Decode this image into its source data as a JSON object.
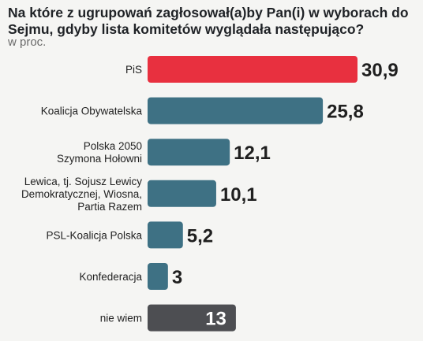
{
  "title": "Na które z ugrupowań zagłosował(a)by Pan(i) w wyborach do Sejmu, gdyby lista komitetów wyglądała następująco?",
  "subtitle": "w proc.",
  "colors": {
    "highlight": "#e8303f",
    "default": "#3e7184",
    "undecided": "#4d4e52"
  },
  "chart_data": {
    "type": "bar",
    "orientation": "horizontal",
    "categories": [
      [
        "PiS"
      ],
      [
        "Koalicja Obywatelska"
      ],
      [
        "Polska 2050",
        "Szymona Hołowni"
      ],
      [
        "Lewica, tj. Sojusz Lewicy",
        "Demokratycznej, Wiosna,",
        "Partia Razem"
      ],
      [
        "PSL-Koalicja Polska"
      ],
      [
        "Konfederacja"
      ],
      [
        "nie wiem"
      ]
    ],
    "values": [
      30.9,
      25.8,
      12.1,
      10.1,
      5.2,
      3,
      13
    ],
    "value_labels": [
      "30,9",
      "25,8",
      "12,1",
      "10,1",
      "5,2",
      "3",
      "13"
    ],
    "bar_styles": [
      "highlight",
      "default",
      "default",
      "default",
      "default",
      "default",
      "undecided"
    ],
    "xlim": [
      0,
      30.9
    ],
    "grid": false,
    "legend": "none"
  }
}
